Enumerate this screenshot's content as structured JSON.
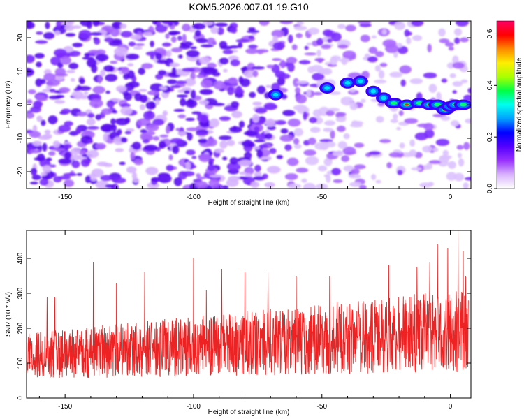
{
  "chart_data": [
    {
      "type": "heatmap",
      "title": "KOM5.2026.007.01.19.G10",
      "xlabel": "Height of straight line (km)",
      "ylabel": "Frequency (Hz)",
      "xlim": [
        -165,
        8
      ],
      "ylim": [
        -25,
        25
      ],
      "xticks": [
        -150,
        -100,
        -50,
        0
      ],
      "yticks": [
        -20,
        -10,
        0,
        10,
        20
      ],
      "colorbar": {
        "label": "Normalized spectral amplitude",
        "range": [
          0.0,
          0.65
        ],
        "ticks": [
          "0.0",
          "0.2",
          "0.4",
          "0.6"
        ],
        "tick_values": [
          0.0,
          0.2,
          0.4,
          0.6
        ],
        "colors": [
          "#ffffff",
          "#d9b3ff",
          "#9933ff",
          "#5500ff",
          "#0000ff",
          "#00a0ff",
          "#00ffee",
          "#00ff44",
          "#aaff00",
          "#ffee00",
          "#ff8800",
          "#ff0000",
          "#ff0066"
        ]
      },
      "features": [
        {
          "name": "strong signal track",
          "points": [
            [
              -68,
              3
            ],
            [
              -48,
              5
            ],
            [
              -40,
              6.5
            ],
            [
              -35,
              7
            ],
            [
              -30,
              4
            ],
            [
              -26,
              2
            ],
            [
              -22,
              0.5
            ],
            [
              -17,
              0
            ],
            [
              -12,
              0.5
            ],
            [
              -8,
              0
            ],
            [
              -5,
              0
            ],
            [
              -2,
              -1.5
            ],
            [
              0,
              -0.5
            ],
            [
              2,
              0
            ],
            [
              5,
              0
            ]
          ]
        }
      ]
    },
    {
      "type": "line",
      "xlabel": "Height of straight line (km)",
      "ylabel": "SNR (10 * v/v)",
      "xlim": [
        -165,
        8
      ],
      "ylim": [
        0,
        480
      ],
      "xticks": [
        -150,
        -100,
        -50,
        0
      ],
      "yticks": [
        0,
        100,
        200,
        300,
        400
      ],
      "series": [
        {
          "name": "SNR",
          "color": "#ee2222",
          "x_range": [
            -165,
            7
          ],
          "x_step": 0.1,
          "baseline_start": 120,
          "baseline_end": 195,
          "noise_range": 120,
          "spikes": [
            [
              -157,
              290
            ],
            [
              -154,
              290
            ],
            [
              -139,
              390
            ],
            [
              -130,
              330
            ],
            [
              -119,
              360
            ],
            [
              -100,
              400
            ],
            [
              -95,
              310
            ],
            [
              -89,
              370
            ],
            [
              -80,
              360
            ],
            [
              -71,
              360
            ],
            [
              -60,
              350
            ],
            [
              -47,
              350
            ],
            [
              -24,
              380
            ],
            [
              -13,
              375
            ],
            [
              -8,
              390
            ],
            [
              -5,
              440
            ],
            [
              -1,
              430
            ],
            [
              3,
              480
            ],
            [
              5,
              420
            ],
            [
              6,
              350
            ]
          ]
        }
      ]
    }
  ]
}
